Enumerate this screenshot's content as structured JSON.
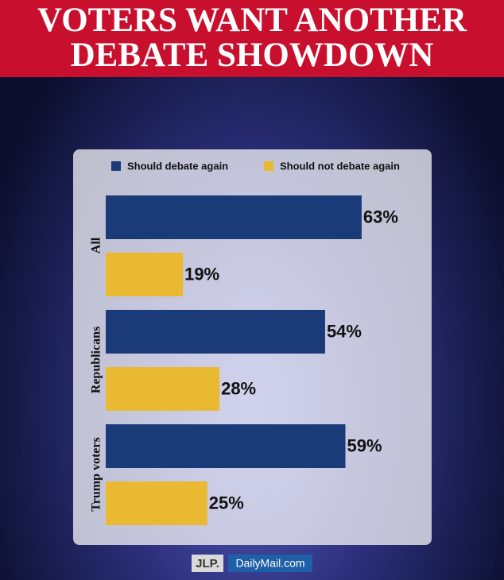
{
  "chart_data": {
    "type": "bar",
    "orientation": "horizontal",
    "title": "VOTERS WANT ANOTHER DEBATE SHOWDOWN",
    "categories": [
      "All",
      "Republicans",
      "Trump voters"
    ],
    "series": [
      {
        "name": "Should debate again",
        "color": "#1b3a78",
        "values": [
          63,
          54,
          59
        ],
        "value_labels": [
          "63%",
          "54%",
          "59%"
        ]
      },
      {
        "name": "Should not debate again",
        "color": "#e9b931",
        "values": [
          19,
          28,
          25
        ],
        "value_labels": [
          "19%",
          "28%",
          "25%"
        ]
      }
    ],
    "legend": "top",
    "logos": [
      "JLP.",
      "DailyMail.com"
    ]
  }
}
